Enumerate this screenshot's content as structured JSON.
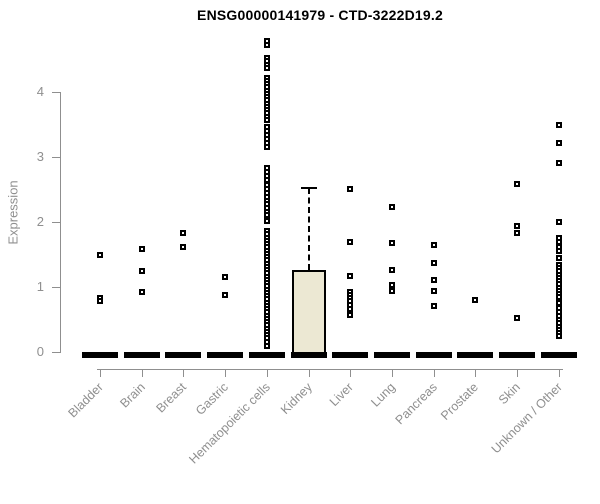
{
  "chart_data": {
    "type": "boxplot",
    "title": "ENSG00000141979 - CTD-3222D19.2",
    "xlabel": "",
    "ylabel": "Expression",
    "ylim": [
      0,
      4.8
    ],
    "yticks": [
      0,
      1,
      2,
      3,
      4
    ],
    "grid": false,
    "legend": "none",
    "categories": [
      "Bladder",
      "Brain",
      "Breast",
      "Gastric",
      "Hematopoietic cells",
      "Kidney",
      "Liver",
      "Lung",
      "Pancreas",
      "Prostate",
      "Skin",
      "Unknown / Other"
    ],
    "colors": {
      "box_fill": "#ece8d3",
      "box_border": "#000000",
      "point": "#000000",
      "axis": "#8f8f8f",
      "tick_label": "#8f8f8f",
      "title": "#000000",
      "background": "#ffffff"
    },
    "series": [
      {
        "name": "Bladder",
        "box": {
          "q1": 0,
          "median": 0,
          "q3": 0,
          "upper_whisker": 0,
          "lower_whisker": 0
        },
        "points": [
          1.5,
          0.83,
          0.79
        ]
      },
      {
        "name": "Brain",
        "box": {
          "q1": 0,
          "median": 0,
          "q3": 0,
          "upper_whisker": 0,
          "lower_whisker": 0
        },
        "points": [
          1.58,
          1.24,
          0.92
        ]
      },
      {
        "name": "Breast",
        "box": {
          "q1": 0,
          "median": 0,
          "q3": 0,
          "upper_whisker": 0,
          "lower_whisker": 0
        },
        "points": [
          1.83,
          1.62
        ]
      },
      {
        "name": "Gastric",
        "box": {
          "q1": 0,
          "median": 0,
          "q3": 0,
          "upper_whisker": 0,
          "lower_whisker": 0
        },
        "points": [
          1.15,
          0.88
        ]
      },
      {
        "name": "Hematopoietic cells",
        "box": {
          "q1": 0,
          "median": 0,
          "q3": 0,
          "upper_whisker": 0,
          "lower_whisker": 0
        },
        "points": [
          4.78,
          4.73,
          4.52,
          4.47,
          4.42,
          4.37,
          4.22,
          4.17,
          4.12,
          4.07,
          4.02,
          3.97,
          3.92,
          3.87,
          3.82,
          3.77,
          3.72,
          3.67,
          3.62,
          3.57,
          3.46,
          3.4,
          3.34,
          3.28,
          3.21,
          3.15,
          2.83,
          2.77,
          2.71,
          2.65,
          2.57,
          2.51,
          2.45,
          2.39,
          2.33,
          2.27,
          2.21,
          2.16,
          2.11,
          2.02,
          1.86,
          1.81,
          1.76,
          1.71,
          1.66,
          1.61,
          1.56,
          1.51,
          1.46,
          1.41,
          1.36,
          1.31,
          1.26,
          1.21,
          1.16,
          1.11,
          1.06,
          1.01,
          0.96,
          0.91,
          0.86,
          0.81,
          0.76,
          0.71,
          0.66,
          0.61,
          0.56,
          0.51,
          0.46,
          0.41,
          0.36,
          0.31,
          0.26,
          0.21,
          0.15,
          0.1
        ]
      },
      {
        "name": "Kidney",
        "box": {
          "q1": 0,
          "median": 0,
          "q3": 1.26,
          "upper_whisker": 2.52,
          "lower_whisker": 0
        },
        "points": []
      },
      {
        "name": "Liver",
        "box": {
          "q1": 0,
          "median": 0,
          "q3": 0,
          "upper_whisker": 0,
          "lower_whisker": 0
        },
        "points": [
          2.51,
          1.69,
          1.17,
          0.93,
          0.88,
          0.83,
          0.78,
          0.72,
          0.66,
          0.57
        ]
      },
      {
        "name": "Lung",
        "box": {
          "q1": 0,
          "median": 0,
          "q3": 0,
          "upper_whisker": 0,
          "lower_whisker": 0
        },
        "points": [
          2.23,
          1.68,
          1.26,
          1.03,
          0.94
        ]
      },
      {
        "name": "Pancreas",
        "box": {
          "q1": 0,
          "median": 0,
          "q3": 0,
          "upper_whisker": 0,
          "lower_whisker": 0
        },
        "points": [
          1.65,
          1.37,
          1.11,
          0.94,
          0.71
        ]
      },
      {
        "name": "Prostate",
        "box": {
          "q1": 0,
          "median": 0,
          "q3": 0,
          "upper_whisker": 0,
          "lower_whisker": 0
        },
        "points": [
          0.8
        ]
      },
      {
        "name": "Skin",
        "box": {
          "q1": 0,
          "median": 0,
          "q3": 0,
          "upper_whisker": 0,
          "lower_whisker": 0
        },
        "points": [
          2.58,
          1.94,
          1.83,
          0.52
        ]
      },
      {
        "name": "Unknown / Other",
        "box": {
          "q1": 0,
          "median": 0,
          "q3": 0,
          "upper_whisker": 0,
          "lower_whisker": 0
        },
        "points": [
          3.5,
          3.21,
          2.91,
          2.0,
          1.75,
          1.7,
          1.62,
          1.56,
          1.45,
          1.34,
          1.29,
          1.24,
          1.19,
          1.14,
          1.09,
          1.04,
          0.99,
          0.94,
          0.89,
          0.85,
          0.75,
          0.68,
          0.62,
          0.55,
          0.49,
          0.44,
          0.39,
          0.34,
          0.29,
          0.24
        ]
      }
    ]
  }
}
